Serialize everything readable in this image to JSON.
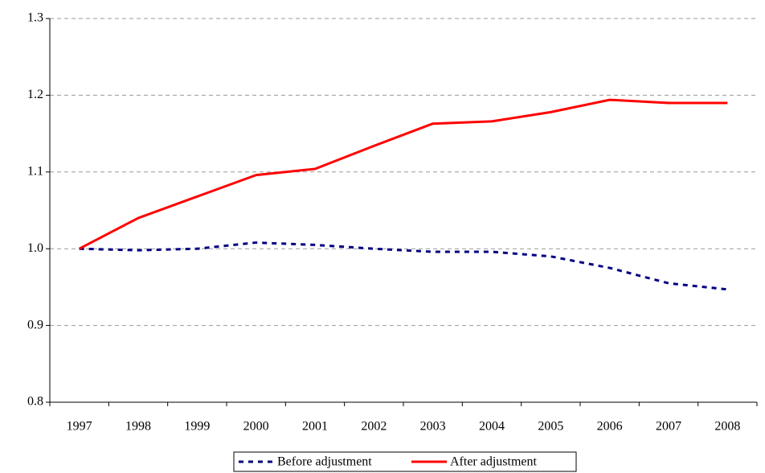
{
  "chart_data": {
    "type": "line",
    "categories": [
      "1997",
      "1998",
      "1999",
      "2000",
      "2001",
      "2002",
      "2003",
      "2004",
      "2005",
      "2006",
      "2007",
      "2008"
    ],
    "series": [
      {
        "name": "Before adjustment",
        "color": "#000080",
        "dashed": true,
        "values": [
          1.0,
          0.998,
          1.0,
          1.008,
          1.005,
          1.0,
          0.996,
          0.996,
          0.99,
          0.975,
          0.955,
          0.947
        ]
      },
      {
        "name": "After adjustment",
        "color": "#ff0000",
        "dashed": false,
        "values": [
          1.0,
          1.04,
          1.068,
          1.096,
          1.104,
          1.134,
          1.163,
          1.166,
          1.178,
          1.194,
          1.19,
          1.19
        ]
      }
    ],
    "ylim": [
      0.8,
      1.3
    ],
    "yticks": [
      0.8,
      0.9,
      {
        "value": 1.0,
        "label": "1.0"
      },
      1.1,
      1.2,
      1.3
    ],
    "grid": true,
    "legend": "bottom"
  }
}
